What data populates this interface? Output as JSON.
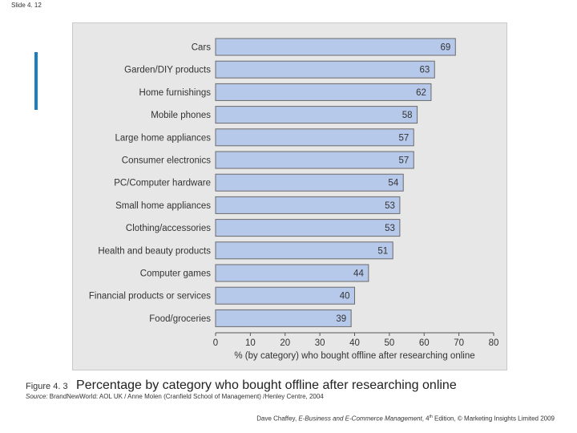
{
  "slide_label": "Slide 4. 12",
  "colors": {
    "bar_fill": "#b7c9ea",
    "bar_stroke": "#6a6a6a",
    "panel_bg": "#e7e7e7",
    "accent": "#1a7fc1"
  },
  "chart_data": {
    "type": "bar",
    "orientation": "horizontal",
    "categories": [
      "Cars",
      "Garden/DIY products",
      "Home furnishings",
      "Mobile phones",
      "Large home appliances",
      "Consumer electronics",
      "PC/Computer hardware",
      "Small home appliances",
      "Clothing/accessories",
      "Health and beauty products",
      "Computer games",
      "Financial products or services",
      "Food/groceries"
    ],
    "values": [
      69,
      63,
      62,
      58,
      57,
      57,
      54,
      53,
      53,
      51,
      44,
      40,
      39
    ],
    "xlabel": "% (by category) who bought offline after researching online",
    "ylabel": "",
    "xlim": [
      0,
      80
    ],
    "xticks": [
      "0",
      "10",
      "20",
      "30",
      "40",
      "50",
      "60",
      "70",
      "80"
    ],
    "grid": false
  },
  "caption": {
    "figure_number": "Figure 4. 3",
    "title": "Percentage by category who bought offline after researching online"
  },
  "source": {
    "label": "Source:",
    "text": " BrandNewWorld: AOL UK / Anne Molen (Cranfield School of Management) /Henley Centre, 2004"
  },
  "footer": {
    "author": "Dave Chaffey, ",
    "book": "E-Business and E-Commerce Management",
    "edition_pre": ", 4",
    "edition_sup": "th",
    "rest": " Edition, © Marketing Insights Limited 2009"
  }
}
